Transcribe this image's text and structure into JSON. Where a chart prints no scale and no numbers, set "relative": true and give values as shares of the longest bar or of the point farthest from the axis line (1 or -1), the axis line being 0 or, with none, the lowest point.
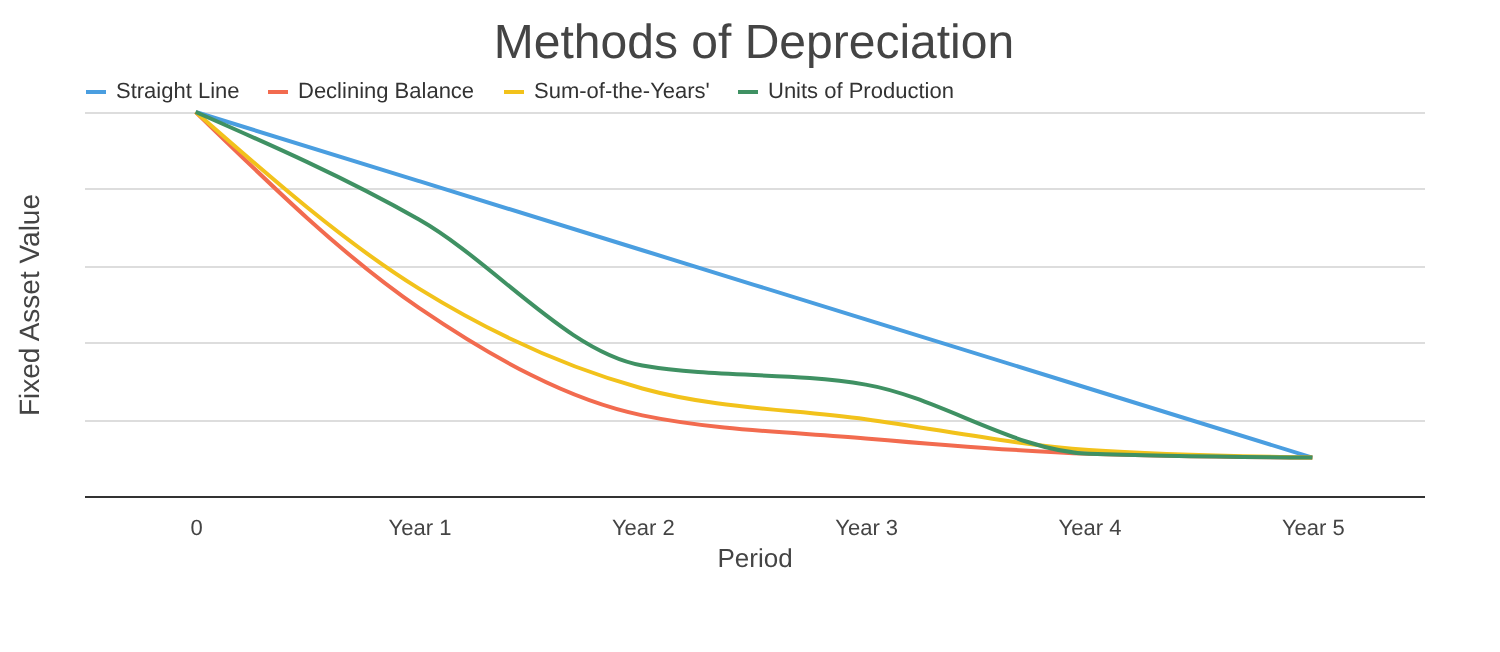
{
  "chart_data": {
    "type": "line",
    "title": "Methods of Depreciation",
    "xlabel": "Period",
    "ylabel": "Fixed Asset Value",
    "relative": true,
    "grid": "y",
    "legend": "top",
    "categories": [
      "0",
      "Year 1",
      "Year 2",
      "Year 3",
      "Year 4",
      "Year 5"
    ],
    "series": [
      {
        "name": "Straight Line",
        "color": "#4a9ee0",
        "values": [
          1,
          0.82,
          0.64,
          0.46,
          0.28,
          0.1
        ]
      },
      {
        "name": "Declining Balance",
        "color": "#f26b4f",
        "values": [
          1,
          0.49,
          0.21,
          0.15,
          0.11,
          0.1
        ]
      },
      {
        "name": "Sum-of-the-Years'",
        "color": "#f2c21b",
        "values": [
          1,
          0.54,
          0.28,
          0.2,
          0.12,
          0.1
        ]
      },
      {
        "name": "Units of Production",
        "color": "#3f9163",
        "values": [
          1,
          0.72,
          0.34,
          0.29,
          0.11,
          0.1
        ]
      }
    ]
  }
}
